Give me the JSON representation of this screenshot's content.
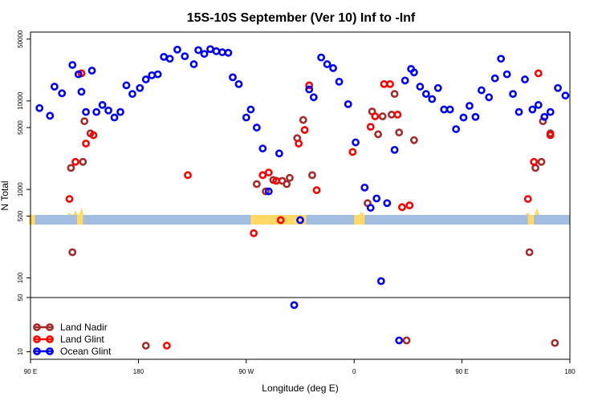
{
  "chart_data": {
    "type": "scatter",
    "title": "15S-10S September (Ver 10)   Inf to -Inf",
    "xlabel": "Longitude (deg E)",
    "ylabel": "N Total",
    "y_scale": "log",
    "xlim": [
      90,
      450
    ],
    "ylim_main": [
      60,
      60000
    ],
    "ylim_lower": [
      8,
      50
    ],
    "x_ticks": [
      {
        "value": 90,
        "label": "90 E"
      },
      {
        "value": 162,
        "label": "180"
      },
      {
        "value": 234,
        "label": "90 W"
      },
      {
        "value": 306,
        "label": "0"
      },
      {
        "value": 378,
        "label": "90 E"
      },
      {
        "value": 450,
        "label": "180"
      }
    ],
    "y_ticks_main": [
      {
        "value": 100,
        "label": "100"
      },
      {
        "value": 500,
        "label": "500"
      },
      {
        "value": 1000,
        "label": "1000"
      },
      {
        "value": 5000,
        "label": "5000"
      },
      {
        "value": 10000,
        "label": "10000"
      },
      {
        "value": 50000,
        "label": "50000"
      }
    ],
    "y_ticks_lower": [
      {
        "value": 10,
        "label": "10"
      },
      {
        "value": 50,
        "label": "50"
      }
    ],
    "map_strip": {
      "land_color": "#ffd966",
      "ocean_color": "#a3bde0"
    },
    "series": [
      {
        "name": "Land Nadir",
        "color": "#a52a2a",
        "points": [
          [
            117,
            1750
          ],
          [
            118,
            195
          ],
          [
            125,
            2050
          ],
          [
            126,
            5900
          ],
          [
            130,
            4300
          ],
          [
            167,
            12
          ],
          [
            241,
            1150
          ],
          [
            247,
            950
          ],
          [
            252,
            1280
          ],
          [
            258,
            1250
          ],
          [
            261,
            1150
          ],
          [
            263,
            1350
          ],
          [
            268,
            3800
          ],
          [
            272,
            6100
          ],
          [
            278,
            1450
          ],
          [
            315,
            700
          ],
          [
            318,
            7600
          ],
          [
            322,
            4200
          ],
          [
            325,
            6700
          ],
          [
            331,
            7000
          ],
          [
            333,
            12000
          ],
          [
            336,
            4400
          ],
          [
            341,
            14
          ],
          [
            346,
            3600
          ],
          [
            423,
            195
          ],
          [
            427,
            1750
          ],
          [
            431,
            2050
          ],
          [
            432,
            5900
          ],
          [
            437,
            4300
          ],
          [
            440,
            13
          ]
        ]
      },
      {
        "name": "Land Glint",
        "color": "#ff0000",
        "points": [
          [
            116,
            780
          ],
          [
            120,
            2050
          ],
          [
            124,
            20500
          ],
          [
            127,
            3300
          ],
          [
            132,
            4100
          ],
          [
            181,
            12
          ],
          [
            195,
            1450
          ],
          [
            239,
            320
          ],
          [
            245,
            1450
          ],
          [
            249,
            1550
          ],
          [
            254,
            1250
          ],
          [
            257,
            450
          ],
          [
            269,
            3300
          ],
          [
            273,
            4700
          ],
          [
            276,
            15000
          ],
          [
            281,
            980
          ],
          [
            305,
            2650
          ],
          [
            317,
            5100
          ],
          [
            320,
            6700
          ],
          [
            326,
            15500
          ],
          [
            330,
            15500
          ],
          [
            335,
            7000
          ],
          [
            338,
            630
          ],
          [
            343,
            660
          ],
          [
            422,
            780
          ],
          [
            426,
            2050
          ],
          [
            429,
            20500
          ],
          [
            437,
            4100
          ]
        ]
      },
      {
        "name": "Ocean Glint",
        "color": "#0000ff",
        "points": [
          [
            96,
            8300
          ],
          [
            103,
            6800
          ],
          [
            106,
            14500
          ],
          [
            111,
            12200
          ],
          [
            118,
            25500
          ],
          [
            122,
            20000
          ],
          [
            124,
            12700
          ],
          [
            127,
            7500
          ],
          [
            131,
            22000
          ],
          [
            134,
            7500
          ],
          [
            138,
            9000
          ],
          [
            142,
            7800
          ],
          [
            146,
            6500
          ],
          [
            150,
            7500
          ],
          [
            154,
            15000
          ],
          [
            158,
            12000
          ],
          [
            163,
            14000
          ],
          [
            167,
            17500
          ],
          [
            171,
            19500
          ],
          [
            175,
            20000
          ],
          [
            179,
            31500
          ],
          [
            183,
            30000
          ],
          [
            188,
            38000
          ],
          [
            193,
            32000
          ],
          [
            199,
            26000
          ],
          [
            202,
            37500
          ],
          [
            206,
            34000
          ],
          [
            210,
            38500
          ],
          [
            214,
            36500
          ],
          [
            218,
            35500
          ],
          [
            222,
            35000
          ],
          [
            225,
            18500
          ],
          [
            229,
            15500
          ],
          [
            234,
            6500
          ],
          [
            237,
            8000
          ],
          [
            241,
            5000
          ],
          [
            245,
            2900
          ],
          [
            249,
            950
          ],
          [
            256,
            2550
          ],
          [
            266,
            40
          ],
          [
            270,
            450
          ],
          [
            276,
            13500
          ],
          [
            279,
            11000
          ],
          [
            284,
            31000
          ],
          [
            288,
            26000
          ],
          [
            292,
            23500
          ],
          [
            296,
            16500
          ],
          [
            302,
            9200
          ],
          [
            307,
            3400
          ],
          [
            313,
            1050
          ],
          [
            317,
            620
          ],
          [
            321,
            790
          ],
          [
            324,
            92
          ],
          [
            328,
            700
          ],
          [
            333,
            2800
          ],
          [
            336,
            14
          ],
          [
            340,
            17000
          ],
          [
            344,
            23000
          ],
          [
            346,
            21000
          ],
          [
            350,
            14500
          ],
          [
            354,
            12000
          ],
          [
            358,
            10500
          ],
          [
            362,
            14000
          ],
          [
            366,
            8000
          ],
          [
            370,
            8000
          ],
          [
            374,
            4800
          ],
          [
            379,
            6500
          ],
          [
            383,
            8800
          ],
          [
            387,
            6600
          ],
          [
            391,
            13200
          ],
          [
            396,
            11000
          ],
          [
            400,
            18000
          ],
          [
            404,
            30000
          ],
          [
            408,
            20000
          ],
          [
            412,
            12000
          ],
          [
            416,
            7500
          ],
          [
            420,
            17500
          ],
          [
            425,
            8000
          ],
          [
            429,
            9000
          ],
          [
            433,
            6600
          ],
          [
            437,
            7500
          ],
          [
            442,
            14000
          ],
          [
            447,
            11500
          ],
          [
            451,
            16500
          ]
        ]
      }
    ],
    "legend": {
      "position": "bottom-left",
      "entries": [
        "Land Nadir",
        "Land Glint",
        "Ocean Glint"
      ]
    }
  }
}
